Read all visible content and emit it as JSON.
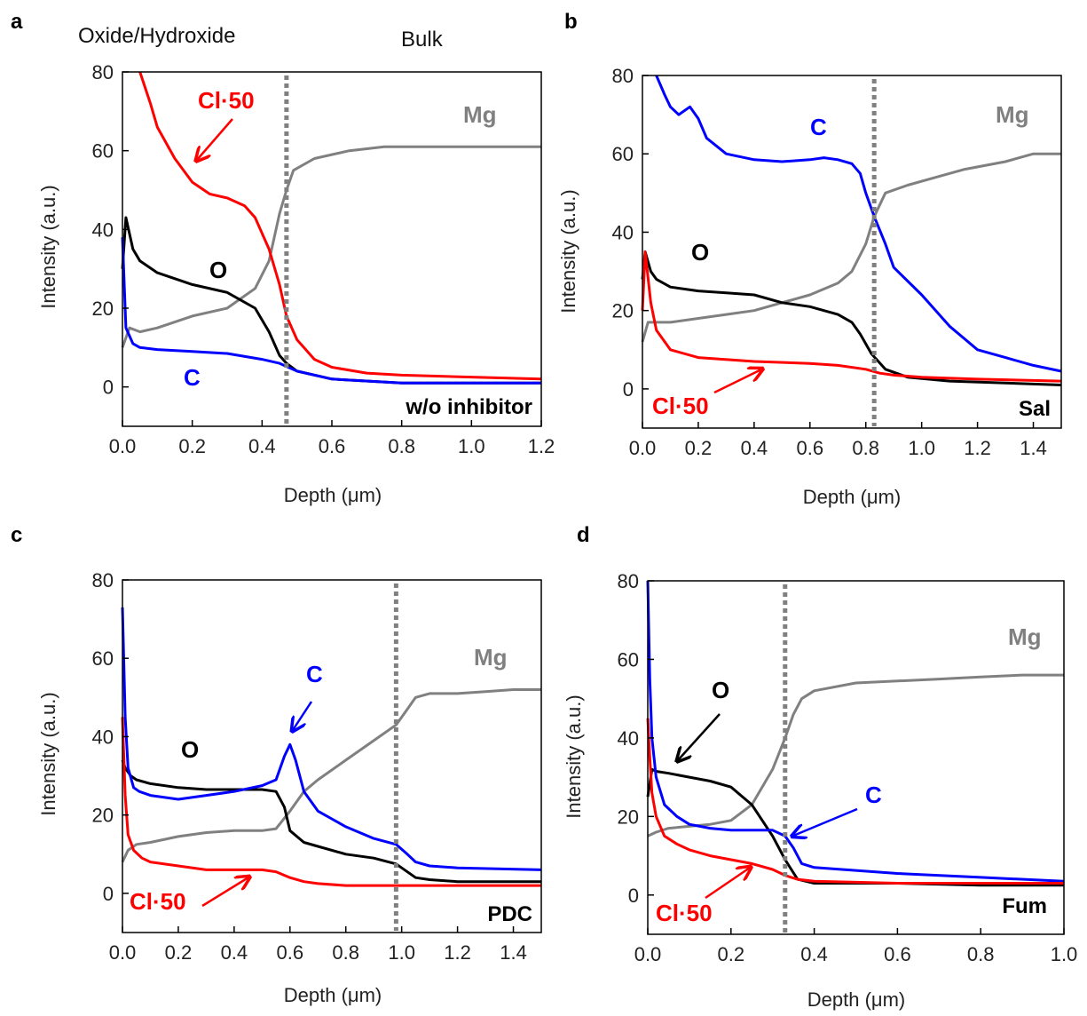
{
  "colors": {
    "Mg": "#808080",
    "O": "#000000",
    "C": "#0000ff",
    "Cl": "#ff0000",
    "divider": "#808080"
  },
  "chart_data": [
    {
      "panel": "a",
      "type": "line",
      "xlabel": "Depth (μm)",
      "ylabel": "Intensity (a.u.)",
      "xlim": [
        0,
        1.2
      ],
      "ylim": [
        -10,
        80
      ],
      "xticks": [
        0,
        0.2,
        0.4,
        0.6,
        0.8,
        1.0,
        1.2
      ],
      "xtick_labels": [
        "0.0",
        "0.2",
        "0.4",
        "0.6",
        "0.8",
        "1.0",
        "1.2"
      ],
      "yticks": [
        0,
        20,
        40,
        60,
        80
      ],
      "region_labels": [
        "Oxide/Hydroxide",
        "Bulk"
      ],
      "sample": "w/o inhibitor",
      "divider_x": 0.47,
      "series": [
        {
          "name": "Mg",
          "color": "#808080",
          "x": [
            0,
            0.02,
            0.05,
            0.1,
            0.2,
            0.3,
            0.38,
            0.42,
            0.45,
            0.47,
            0.49,
            0.55,
            0.65,
            0.75,
            0.85,
            1.0,
            1.2
          ],
          "y": [
            10,
            15,
            14,
            15,
            18,
            20,
            25,
            32,
            44,
            50,
            55,
            58,
            60,
            61,
            61,
            61,
            61
          ]
        },
        {
          "name": "O",
          "color": "#000000",
          "x": [
            0,
            0.01,
            0.03,
            0.05,
            0.1,
            0.2,
            0.3,
            0.38,
            0.42,
            0.45,
            0.47,
            0.5,
            0.6,
            0.8,
            1.0,
            1.2
          ],
          "y": [
            30,
            43,
            35,
            32,
            29,
            26,
            24,
            20,
            14,
            8,
            6,
            4,
            2,
            1,
            1,
            1
          ]
        },
        {
          "name": "C",
          "color": "#0000ff",
          "x": [
            0,
            0.01,
            0.03,
            0.05,
            0.1,
            0.2,
            0.3,
            0.4,
            0.45,
            0.5,
            0.6,
            0.8,
            1.0,
            1.2
          ],
          "y": [
            38,
            15,
            11,
            10,
            9.5,
            9,
            8.5,
            7,
            6,
            4,
            2,
            1,
            1,
            1
          ]
        },
        {
          "name": "Cl·50",
          "color": "#ff0000",
          "x": [
            0.05,
            0.08,
            0.1,
            0.15,
            0.2,
            0.25,
            0.3,
            0.35,
            0.38,
            0.42,
            0.45,
            0.47,
            0.5,
            0.55,
            0.6,
            0.7,
            0.8,
            1.0,
            1.2
          ],
          "y": [
            80,
            72,
            66,
            58,
            52,
            49,
            48,
            46,
            43,
            35,
            26,
            18,
            12,
            7,
            5,
            3.5,
            3,
            2.5,
            2
          ]
        }
      ],
      "annotations": [
        {
          "text": "Cl·50",
          "color": "#ff0000"
        },
        {
          "text": "Mg",
          "color": "#808080"
        },
        {
          "text": "O",
          "color": "#000000"
        },
        {
          "text": "C",
          "color": "#0000ff"
        }
      ]
    },
    {
      "panel": "b",
      "type": "line",
      "xlabel": "Depth (μm)",
      "ylabel": "Intensity (a.u.)",
      "xlim": [
        0,
        1.5
      ],
      "ylim": [
        -10,
        80
      ],
      "xticks": [
        0,
        0.2,
        0.4,
        0.6,
        0.8,
        1.0,
        1.2,
        1.4
      ],
      "xtick_labels": [
        "0.0",
        "0.2",
        "0.4",
        "0.6",
        "0.8",
        "1.0",
        "1.2",
        "1.4"
      ],
      "yticks": [
        0,
        20,
        40,
        60,
        80
      ],
      "sample": "Sal",
      "divider_x": 0.83,
      "series": [
        {
          "name": "Mg",
          "color": "#808080",
          "x": [
            0,
            0.02,
            0.05,
            0.1,
            0.2,
            0.3,
            0.4,
            0.5,
            0.6,
            0.7,
            0.75,
            0.8,
            0.83,
            0.87,
            0.95,
            1.05,
            1.15,
            1.3,
            1.4,
            1.5
          ],
          "y": [
            12,
            17,
            17,
            17,
            18,
            19,
            20,
            22,
            24,
            27,
            30,
            37,
            44,
            50,
            52,
            54,
            56,
            58,
            60,
            60
          ]
        },
        {
          "name": "O",
          "color": "#000000",
          "x": [
            0,
            0.01,
            0.03,
            0.05,
            0.1,
            0.2,
            0.3,
            0.4,
            0.5,
            0.6,
            0.7,
            0.75,
            0.78,
            0.82,
            0.87,
            0.95,
            1.1,
            1.3,
            1.5
          ],
          "y": [
            28,
            35,
            30,
            28,
            26,
            25,
            24.5,
            24,
            22,
            21,
            19,
            17,
            14,
            9,
            5,
            3,
            2,
            1.5,
            1
          ]
        },
        {
          "name": "C",
          "color": "#0000ff",
          "x": [
            0.05,
            0.08,
            0.1,
            0.13,
            0.17,
            0.2,
            0.23,
            0.3,
            0.4,
            0.5,
            0.6,
            0.65,
            0.7,
            0.75,
            0.78,
            0.8,
            0.83,
            0.87,
            0.9,
            1.0,
            1.1,
            1.2,
            1.3,
            1.4,
            1.5
          ],
          "y": [
            80,
            75,
            72,
            70,
            72,
            69,
            64,
            60,
            58.5,
            58,
            58.5,
            59,
            58.5,
            57.5,
            55,
            50,
            44,
            37,
            31,
            24,
            16,
            10,
            8,
            6,
            4.5
          ]
        },
        {
          "name": "Cl·50",
          "color": "#ff0000",
          "x": [
            0,
            0.01,
            0.03,
            0.05,
            0.1,
            0.2,
            0.4,
            0.6,
            0.7,
            0.8,
            0.85,
            0.9,
            1.0,
            1.2,
            1.5
          ],
          "y": [
            20,
            35,
            22,
            15,
            10,
            8,
            7,
            6.5,
            6,
            5,
            4,
            3.5,
            3,
            2.5,
            2
          ]
        }
      ],
      "annotations": [
        {
          "text": "C",
          "color": "#0000ff"
        },
        {
          "text": "Mg",
          "color": "#808080"
        },
        {
          "text": "O",
          "color": "#000000"
        },
        {
          "text": "Cl·50",
          "color": "#ff0000"
        }
      ]
    },
    {
      "panel": "c",
      "type": "line",
      "xlabel": "Depth (μm)",
      "ylabel": "Intensity (a.u.)",
      "xlim": [
        0,
        1.5
      ],
      "ylim": [
        -10,
        80
      ],
      "xticks": [
        0,
        0.2,
        0.4,
        0.6,
        0.8,
        1.0,
        1.2,
        1.4
      ],
      "xtick_labels": [
        "0.0",
        "0.2",
        "0.4",
        "0.6",
        "0.8",
        "1.0",
        "1.2",
        "1.4"
      ],
      "yticks": [
        0,
        20,
        40,
        60,
        80
      ],
      "sample": "PDC",
      "divider_x": 0.98,
      "series": [
        {
          "name": "Mg",
          "color": "#808080",
          "x": [
            0,
            0.02,
            0.05,
            0.1,
            0.2,
            0.3,
            0.4,
            0.5,
            0.55,
            0.6,
            0.65,
            0.7,
            0.8,
            0.9,
            0.98,
            1.02,
            1.05,
            1.1,
            1.2,
            1.3,
            1.4,
            1.5
          ],
          "y": [
            8,
            11,
            12.5,
            13,
            14.5,
            15.5,
            16,
            16,
            16.5,
            21,
            26,
            29,
            34,
            39,
            43,
            47,
            50,
            51,
            51,
            51.5,
            52,
            52
          ]
        },
        {
          "name": "O",
          "color": "#000000",
          "x": [
            0,
            0.01,
            0.03,
            0.05,
            0.1,
            0.2,
            0.3,
            0.4,
            0.5,
            0.55,
            0.58,
            0.6,
            0.65,
            0.7,
            0.8,
            0.9,
            0.98,
            1.0,
            1.05,
            1.1,
            1.2,
            1.5
          ],
          "y": [
            34,
            32,
            30,
            29,
            28,
            27,
            26.5,
            26.5,
            26.5,
            26,
            22,
            16,
            13,
            12,
            10,
            9,
            7.5,
            6.5,
            4,
            3.5,
            3,
            3
          ]
        },
        {
          "name": "C",
          "color": "#0000ff",
          "x": [
            0,
            0.01,
            0.02,
            0.04,
            0.06,
            0.1,
            0.2,
            0.3,
            0.4,
            0.5,
            0.55,
            0.58,
            0.6,
            0.62,
            0.65,
            0.7,
            0.8,
            0.9,
            0.98,
            1.02,
            1.05,
            1.1,
            1.2,
            1.5
          ],
          "y": [
            73,
            45,
            32,
            27,
            26,
            25,
            24,
            25,
            26,
            27.5,
            29,
            35,
            38,
            34,
            26,
            21,
            17,
            14,
            12.5,
            10,
            8,
            7,
            6.5,
            6
          ]
        },
        {
          "name": "Cl·50",
          "color": "#ff0000",
          "x": [
            0,
            0.01,
            0.02,
            0.04,
            0.07,
            0.1,
            0.2,
            0.3,
            0.4,
            0.5,
            0.55,
            0.6,
            0.65,
            0.7,
            0.8,
            1.0,
            1.5
          ],
          "y": [
            45,
            25,
            15,
            11,
            9,
            8,
            7,
            6,
            6,
            6,
            5.5,
            4,
            3,
            2.5,
            2,
            2,
            2
          ]
        }
      ],
      "annotations": [
        {
          "text": "Mg",
          "color": "#808080"
        },
        {
          "text": "C",
          "color": "#0000ff"
        },
        {
          "text": "O",
          "color": "#000000"
        },
        {
          "text": "Cl·50",
          "color": "#ff0000"
        }
      ]
    },
    {
      "panel": "d",
      "type": "line",
      "xlabel": "Depth (μm)",
      "ylabel": "Intensity (a.u.)",
      "xlim": [
        0,
        1.0
      ],
      "ylim": [
        -10,
        80
      ],
      "xticks": [
        0,
        0.2,
        0.4,
        0.6,
        0.8,
        1.0
      ],
      "xtick_labels": [
        "0.0",
        "0.2",
        "0.4",
        "0.6",
        "0.8",
        "1.0"
      ],
      "yticks": [
        0,
        20,
        40,
        60,
        80
      ],
      "sample": "Fum",
      "divider_x": 0.33,
      "series": [
        {
          "name": "Mg",
          "color": "#808080",
          "x": [
            0,
            0.02,
            0.05,
            0.1,
            0.15,
            0.2,
            0.25,
            0.3,
            0.33,
            0.35,
            0.37,
            0.4,
            0.5,
            0.6,
            0.7,
            0.8,
            0.9,
            1.0
          ],
          "y": [
            15,
            16,
            17,
            17.5,
            18,
            19,
            23,
            32,
            40,
            46,
            50,
            52,
            54,
            54.5,
            55,
            55.5,
            56,
            56
          ]
        },
        {
          "name": "O",
          "color": "#000000",
          "x": [
            0,
            0.01,
            0.02,
            0.05,
            0.1,
            0.15,
            0.2,
            0.25,
            0.3,
            0.33,
            0.36,
            0.4,
            0.6,
            0.8,
            1.0
          ],
          "y": [
            25,
            32,
            31.5,
            31,
            30,
            29,
            27.5,
            23,
            15,
            9,
            4,
            3,
            3,
            2.5,
            2.5
          ]
        },
        {
          "name": "C",
          "color": "#0000ff",
          "x": [
            0,
            0.005,
            0.01,
            0.02,
            0.04,
            0.07,
            0.1,
            0.15,
            0.2,
            0.25,
            0.3,
            0.33,
            0.35,
            0.37,
            0.4,
            0.6,
            0.8,
            1.0
          ],
          "y": [
            80,
            55,
            40,
            30,
            23,
            20,
            18,
            17,
            16.5,
            16.5,
            16.5,
            15,
            12,
            8,
            7,
            5.5,
            4.5,
            3.5
          ]
        },
        {
          "name": "Cl·50",
          "color": "#ff0000",
          "x": [
            0,
            0.005,
            0.01,
            0.02,
            0.04,
            0.07,
            0.1,
            0.15,
            0.2,
            0.25,
            0.3,
            0.33,
            0.36,
            0.4,
            0.6,
            0.8,
            1.0
          ],
          "y": [
            45,
            35,
            26,
            20,
            15,
            13,
            11.5,
            10,
            9,
            8,
            6.5,
            5,
            4,
            3.5,
            3,
            3,
            3
          ]
        }
      ],
      "annotations": [
        {
          "text": "Mg",
          "color": "#808080"
        },
        {
          "text": "O",
          "color": "#000000"
        },
        {
          "text": "C",
          "color": "#0000ff"
        },
        {
          "text": "Cl·50",
          "color": "#ff0000"
        }
      ]
    }
  ]
}
